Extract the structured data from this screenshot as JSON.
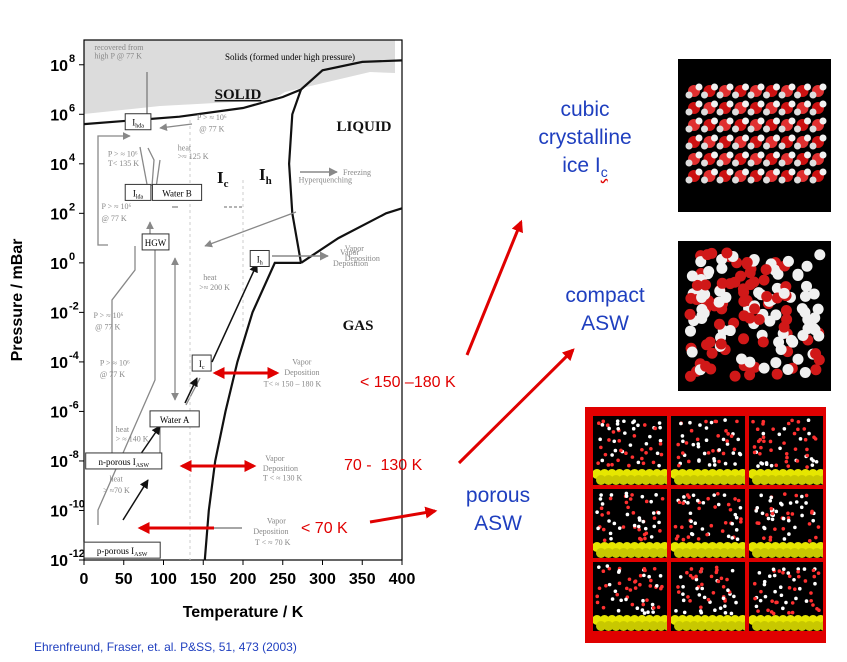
{
  "chart_data": {
    "type": "phase-diagram",
    "title": "",
    "xlabel": "Temperature / K",
    "ylabel": "Pressure / mBar",
    "xlim": [
      0,
      400
    ],
    "ylim": [
      1e-12,
      1000000000.0
    ],
    "xticks": [
      0,
      50,
      100,
      150,
      200,
      250,
      300,
      350,
      400
    ],
    "yticks": [
      {
        "v": 100000000.0,
        "m": "10",
        "e": "8"
      },
      {
        "v": 1000000.0,
        "m": "10",
        "e": "6"
      },
      {
        "v": 10000.0,
        "m": "10",
        "e": "4"
      },
      {
        "v": 100.0,
        "m": "10",
        "e": "2"
      },
      {
        "v": 1,
        "m": "10",
        "e": "0"
      },
      {
        "v": 0.01,
        "m": "10",
        "e": "-2"
      },
      {
        "v": 0.0001,
        "m": "10",
        "e": "-4"
      },
      {
        "v": 1e-06,
        "m": "10",
        "e": "-6"
      },
      {
        "v": 1e-08,
        "m": "10",
        "e": "-8"
      },
      {
        "v": 1e-10,
        "m": "10",
        "e": "-10"
      },
      {
        "v": 1e-12,
        "m": "10",
        "e": "-12"
      }
    ],
    "series": [
      {
        "name": "solid-boundary",
        "points": [
          [
            0,
            400000.0
          ],
          [
            120,
            800000.0
          ],
          [
            200,
            1800000.0
          ],
          [
            250,
            5000000.0
          ],
          [
            273,
            10000000.0
          ],
          [
            300,
            60000000.0
          ],
          [
            350,
            130000000.0
          ],
          [
            400,
            150000000.0
          ]
        ]
      },
      {
        "name": "melting-curve",
        "points": [
          [
            273,
            10000000.0
          ],
          [
            262,
            1000000.0
          ],
          [
            258,
            10000.0
          ],
          [
            262,
            100.0
          ],
          [
            273,
            1
          ]
        ]
      },
      {
        "name": "liquid-gas-curve",
        "points": [
          [
            273,
            1
          ],
          [
            320,
            10.0
          ],
          [
            380,
            100.0
          ],
          [
            400,
            160.0
          ]
        ]
      },
      {
        "name": "sublimation-curve",
        "points": [
          [
            152,
            1e-12
          ],
          [
            157,
            1e-10
          ],
          [
            165,
            1e-08
          ],
          [
            178,
            1e-06
          ],
          [
            193,
            0.0001
          ],
          [
            212,
            0.01
          ],
          [
            240,
            1
          ],
          [
            273,
            1
          ]
        ]
      }
    ],
    "region_labels": [
      "SOLID",
      "LIQUID",
      "GAS",
      "Solids (formed under high pressure)"
    ],
    "phase_labels": {
      "ic": {
        "main": "I",
        "sub": "c"
      },
      "ih": {
        "main": "I",
        "sub": "h"
      }
    },
    "boxes": [
      {
        "id": "ihda",
        "main": "I",
        "sub": "hda",
        "x": 68,
        "p": 500000.0
      },
      {
        "id": "ilda",
        "main": "I",
        "sub": "lda",
        "x": 68,
        "p": 700.0
      },
      {
        "id": "waterb",
        "main": "Water B",
        "sub": "",
        "x": 117,
        "p": 700.0
      },
      {
        "id": "hgw",
        "main": "HGW",
        "sub": "",
        "x": 90,
        "p": 7
      },
      {
        "id": "ih",
        "main": "I",
        "sub": "h",
        "x": 221,
        "p": 1.5
      },
      {
        "id": "ic",
        "main": "I",
        "sub": "c",
        "x": 148,
        "p": 9e-05
      },
      {
        "id": "watera",
        "main": "Water A",
        "sub": "",
        "x": 114,
        "p": 5e-07
      },
      {
        "id": "nasw",
        "main": "n-porous I",
        "sub": "ASW",
        "x": 50,
        "p": 1e-08
      },
      {
        "id": "pasw",
        "main": "p-porous I",
        "sub": "ASW",
        "x": 48,
        "p": 2.5e-12
      }
    ],
    "annotations": [
      {
        "text": "recovered from",
        "x": 13,
        "p": 400000000.0
      },
      {
        "text": "high P @ 77 K",
        "x": 13,
        "p": 180000000.0
      },
      {
        "text": "P > ≈ 10⁶",
        "x": 142,
        "p": 600000.0
      },
      {
        "text": "@ 77 K",
        "x": 145,
        "p": 200000.0
      },
      {
        "text": "heat",
        "x": 118,
        "p": 35000.0
      },
      {
        "text": ">≈ 125 K",
        "x": 118,
        "p": 16000.0
      },
      {
        "text": "P > ≈ 10⁶",
        "x": 30,
        "p": 20000.0
      },
      {
        "text": "T< 135 K",
        "x": 30,
        "p": 8000.0
      },
      {
        "text": "P > ≈ 10⁶",
        "x": 22,
        "p": 150.0
      },
      {
        "text": "@ 77 K",
        "x": 22,
        "p": 50
      },
      {
        "text": "Hyperquenching",
        "x": 270,
        "p": 1800.0
      },
      {
        "text": "Vapor",
        "x": 328,
        "p": 3
      },
      {
        "text": "Deposition",
        "x": 328,
        "p": 1.2
      },
      {
        "text": "heat",
        "x": 150,
        "p": 0.2
      },
      {
        "text": ">≈ 200 K",
        "x": 145,
        "p": 0.08
      },
      {
        "text": "P > ≈ 10⁶",
        "x": 12,
        "p": 0.006
      },
      {
        "text": "@ 77 K",
        "x": 14,
        "p": 0.002
      },
      {
        "text": "P > ≈ 10⁶",
        "x": 20,
        "p": 7e-05
      },
      {
        "text": "@ 77 K",
        "x": 20,
        "p": 2.5e-05
      },
      {
        "text": "Vapor",
        "x": 262,
        "p": 8e-05
      },
      {
        "text": "Deposition",
        "x": 252,
        "p": 3e-05
      },
      {
        "text": "T< ≈ 150 – 180 K",
        "x": 226,
        "p": 1e-05
      },
      {
        "text": "heat",
        "x": 40,
        "p": 1.5e-07
      },
      {
        "text": "> ≈ 140 K",
        "x": 40,
        "p": 6e-08
      },
      {
        "text": "Vapor",
        "x": 228,
        "p": 1e-08
      },
      {
        "text": "Deposition",
        "x": 225,
        "p": 4e-09
      },
      {
        "text": "T < ≈ 130 K",
        "x": 225,
        "p": 1.6e-09
      },
      {
        "text": "heat",
        "x": 32,
        "p": 1.5e-09
      },
      {
        "text": "> ≈70 K",
        "x": 24,
        "p": 5e-10
      },
      {
        "text": "Vapor",
        "x": 230,
        "p": 3e-11
      },
      {
        "text": "Deposition",
        "x": 213,
        "p": 1.1e-11
      },
      {
        "text": "T < ≈ 70 K",
        "x": 215,
        "p": 4e-12
      }
    ],
    "side_labels": {
      "freezing": "Freezing",
      "vapor": "Vapor",
      "deposition": "Deposition"
    }
  },
  "temperature_ranges": [
    {
      "label": "< 150 –180 K"
    },
    {
      "label": "70 -  130 K"
    },
    {
      "label": "< 70 K"
    }
  ],
  "ice_types": {
    "cubic": [
      "cubic",
      "crystalline",
      "ice I"
    ],
    "cubic_sub": "c",
    "compact": [
      "compact",
      "ASW"
    ],
    "porous": [
      "porous",
      "ASW"
    ]
  },
  "colors": {
    "accent_red": "#e00000",
    "label_blue": "#1f3fbf",
    "solid_fill": "#dcdcdc"
  },
  "citation": "Ehrenfreund, Fraser, et. al. P&SS, 51, 473 (2003)"
}
